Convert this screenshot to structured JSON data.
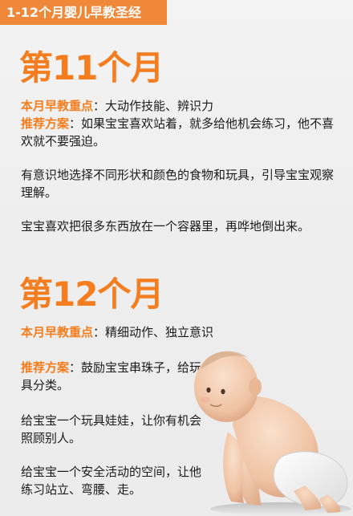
{
  "header": {
    "title": "1-12个月婴儿早教圣经"
  },
  "month11": {
    "title": "第11个月",
    "focus_key": "本月早教重点",
    "focus_text": "：大动作技能、辨识力",
    "plan_key": "推荐方案",
    "plan_text": "：如果宝宝喜欢站着，就多给他机会练习，他不喜欢就不要强迫。",
    "para1": "有意识地选择不同形状和颜色的食物和玩具，引导宝宝观察理解。",
    "para2": "宝宝喜欢把很多东西放在一个容器里，再哗地倒出来。"
  },
  "month12": {
    "title": "第12个月",
    "focus_key": "本月早教重点",
    "focus_text": "：精细动作、独立意识",
    "plan_key": "推荐方案",
    "plan_text": "：鼓励宝宝串珠子，给玩具分类。",
    "para1": "给宝宝一个玩具娃娃，让你有机会照顾别人。",
    "para2": "给宝宝一个安全活动的空间，让他练习站立、弯腰、走。"
  },
  "colors": {
    "accent": "#f47e1f",
    "banner": "#f0883a"
  }
}
